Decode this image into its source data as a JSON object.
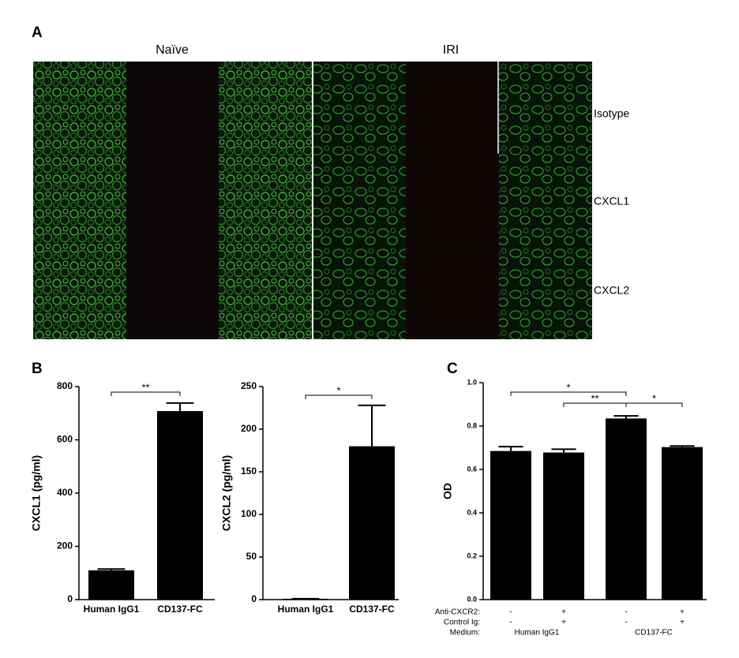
{
  "panel_a": {
    "label": "A",
    "columns": [
      "Naïve",
      "IRI"
    ],
    "rows": [
      "Isotype",
      "CXCL1",
      "CXCL2"
    ]
  },
  "panel_b": {
    "label": "B"
  },
  "panel_c": {
    "label": "C"
  },
  "chart_data": [
    {
      "type": "bar",
      "ylabel": "CXCL1 (pg/ml)",
      "categories": [
        "Human IgG1",
        "CD137-FC"
      ],
      "values": [
        110,
        708
      ],
      "errors": [
        5,
        30
      ],
      "color": "#000000",
      "ylim": [
        0,
        800
      ],
      "yticks": [
        0,
        200,
        400,
        600,
        800
      ],
      "annotations": [
        "**"
      ]
    },
    {
      "type": "bar",
      "ylabel": "CXCL2 (pg/ml)",
      "categories": [
        "Human IgG1",
        "CD137-FC"
      ],
      "values": [
        1,
        180
      ],
      "errors": [
        0,
        48
      ],
      "color": "#000000",
      "ylim": [
        0,
        250
      ],
      "yticks": [
        0,
        50,
        100,
        150,
        200,
        250
      ],
      "annotations": [
        "*"
      ]
    },
    {
      "type": "bar",
      "ylabel": "OD",
      "categories": [
        null,
        null,
        null,
        null
      ],
      "values": [
        0.685,
        0.678,
        0.835,
        0.703
      ],
      "errors": [
        0.02,
        0.015,
        0.012,
        0.005
      ],
      "color": "#000000",
      "ylim": [
        0,
        1.0
      ],
      "yticks": [
        {
          "value": 0,
          "label": "0.0"
        },
        {
          "value": 0.2,
          "label": "0.2"
        },
        {
          "value": 0.4,
          "label": "0.4"
        },
        {
          "value": 0.6,
          "label": "0.6"
        },
        {
          "value": 0.8,
          "label": "0.8"
        },
        {
          "value": 1.0,
          "label": "1.0"
        }
      ],
      "annotations": [
        "*",
        "**",
        "*"
      ],
      "conditions": [
        {
          "label": "Anti-CXCR2:",
          "values": [
            "-",
            "+",
            "-",
            "+"
          ]
        },
        {
          "label": "Control Ig:",
          "values": [
            "-",
            "+",
            "-",
            "+"
          ]
        }
      ],
      "medium": {
        "label": "Medium:",
        "groups": [
          "Human IgG1",
          "CD137-FC"
        ]
      }
    }
  ]
}
